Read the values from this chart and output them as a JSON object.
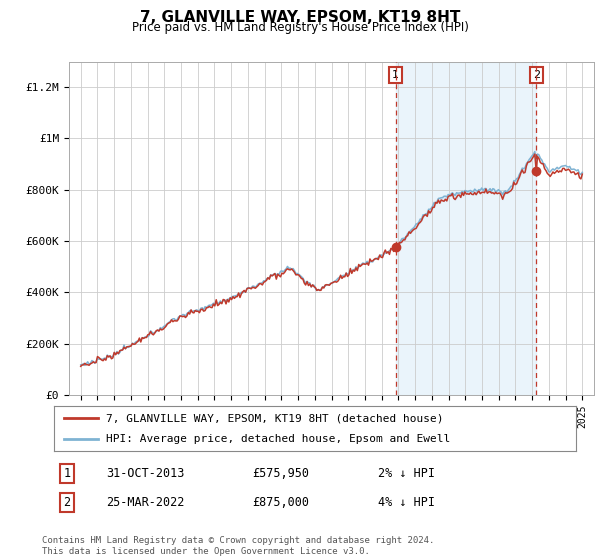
{
  "title": "7, GLANVILLE WAY, EPSOM, KT19 8HT",
  "subtitle": "Price paid vs. HM Land Registry's House Price Index (HPI)",
  "ylim": [
    0,
    1300000
  ],
  "yticks": [
    0,
    200000,
    400000,
    600000,
    800000,
    1000000,
    1200000
  ],
  "ytick_labels": [
    "£0",
    "£200K",
    "£400K",
    "£600K",
    "£800K",
    "£1M",
    "£1.2M"
  ],
  "hpi_color": "#7fb3d3",
  "price_color": "#c0392b",
  "fill_color": "#d6eaf8",
  "marker_color": "#c0392b",
  "vline_color": "#c0392b",
  "t1_year": 2013.833,
  "t1_price": 575950,
  "t2_year": 2022.25,
  "t2_price": 875000,
  "transaction1": {
    "label": "1",
    "date": "31-OCT-2013",
    "price": 575950,
    "pct": "2%",
    "dir": "↓"
  },
  "transaction2": {
    "label": "2",
    "date": "25-MAR-2022",
    "price": 875000,
    "pct": "4%",
    "dir": "↓"
  },
  "legend_line1": "7, GLANVILLE WAY, EPSOM, KT19 8HT (detached house)",
  "legend_line2": "HPI: Average price, detached house, Epsom and Ewell",
  "footnote": "Contains HM Land Registry data © Crown copyright and database right 2024.\nThis data is licensed under the Open Government Licence v3.0.",
  "background_color": "#ffffff",
  "plot_bg_color": "#ffffff",
  "grid_color": "#cccccc"
}
